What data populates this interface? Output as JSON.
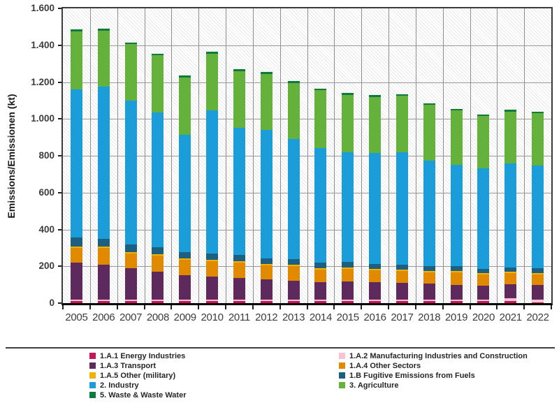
{
  "chart_data": {
    "type": "bar",
    "stacked": true,
    "title": "",
    "xlabel": "",
    "ylabel": "Emissions/Emissionen (kt)",
    "ylim": [
      0,
      1600
    ],
    "ytick_interval": 200,
    "ytick_labels": [
      "0",
      "200",
      "400",
      "600",
      "800",
      "1.000",
      "1.200",
      "1.400",
      "1.600"
    ],
    "grid": true,
    "plot_background": "diagonal-hatch",
    "legend_position": "bottom-two-columns",
    "categories": [
      "2005",
      "2006",
      "2007",
      "2008",
      "2009",
      "2010",
      "2011",
      "2012",
      "2013",
      "2014",
      "2015",
      "2016",
      "2017",
      "2018",
      "2019",
      "2020",
      "2021",
      "2022"
    ],
    "series": [
      {
        "name": "1.A.1 Energy Industries",
        "color": "#C9145A",
        "values": [
          10,
          10,
          10,
          10,
          10,
          10,
          10,
          10,
          10,
          10,
          10,
          10,
          10,
          10,
          10,
          10,
          10,
          5
        ]
      },
      {
        "name": "1.A.2 Manufacturing Industries and Construction",
        "color": "#F5C3D2",
        "values": [
          10,
          10,
          10,
          10,
          10,
          10,
          10,
          10,
          10,
          10,
          10,
          10,
          10,
          10,
          10,
          10,
          15,
          15
        ]
      },
      {
        "name": "1.A.3 Transport",
        "color": "#5E2A5E",
        "values": [
          200,
          190,
          168,
          150,
          132,
          125,
          115,
          108,
          103,
          95,
          99,
          95,
          90,
          86,
          80,
          75,
          78,
          80
        ]
      },
      {
        "name": "1.A.4 Other Sectors",
        "color": "#E18A00",
        "values": [
          78,
          88,
          82,
          86,
          82,
          82,
          86,
          78,
          79,
          68,
          68,
          63,
          65,
          62,
          65,
          60,
          60,
          55
        ]
      },
      {
        "name": "1.A.5 Other (military)",
        "color": "#F2B200",
        "values": [
          8,
          8,
          8,
          8,
          8,
          8,
          8,
          8,
          8,
          8,
          8,
          8,
          8,
          8,
          8,
          8,
          8,
          8
        ]
      },
      {
        "name": "1.B Fugitive Emissions from Fuels",
        "color": "#1C5F80",
        "values": [
          50,
          42,
          42,
          39,
          35,
          35,
          31,
          30,
          30,
          28,
          27,
          26,
          27,
          26,
          27,
          22,
          24,
          27
        ]
      },
      {
        "name": "2. Industry",
        "color": "#1B9DD9",
        "values": [
          806,
          827,
          780,
          732,
          638,
          775,
          690,
          696,
          650,
          621,
          598,
          603,
          610,
          573,
          550,
          545,
          565,
          558
        ]
      },
      {
        "name": "3. Agriculture",
        "color": "#64B13C",
        "values": [
          313,
          305,
          305,
          310,
          310,
          310,
          310,
          305,
          305,
          315,
          310,
          305,
          305,
          300,
          295,
          285,
          280,
          282
        ]
      },
      {
        "name": "5. Waste & Waste Water",
        "color": "#0E7A3C",
        "values": [
          10,
          10,
          10,
          10,
          10,
          10,
          10,
          10,
          10,
          10,
          10,
          10,
          10,
          10,
          10,
          10,
          10,
          10
        ]
      }
    ],
    "totals": [
      1485,
      1490,
      1415,
      1355,
      1235,
      1365,
      1270,
      1255,
      1205,
      1165,
      1140,
      1130,
      1135,
      1085,
      1055,
      1025,
      1050,
      1040
    ],
    "legend_columns": {
      "left": [
        0,
        2,
        4,
        6,
        8
      ],
      "right": [
        1,
        3,
        5,
        7
      ]
    }
  }
}
